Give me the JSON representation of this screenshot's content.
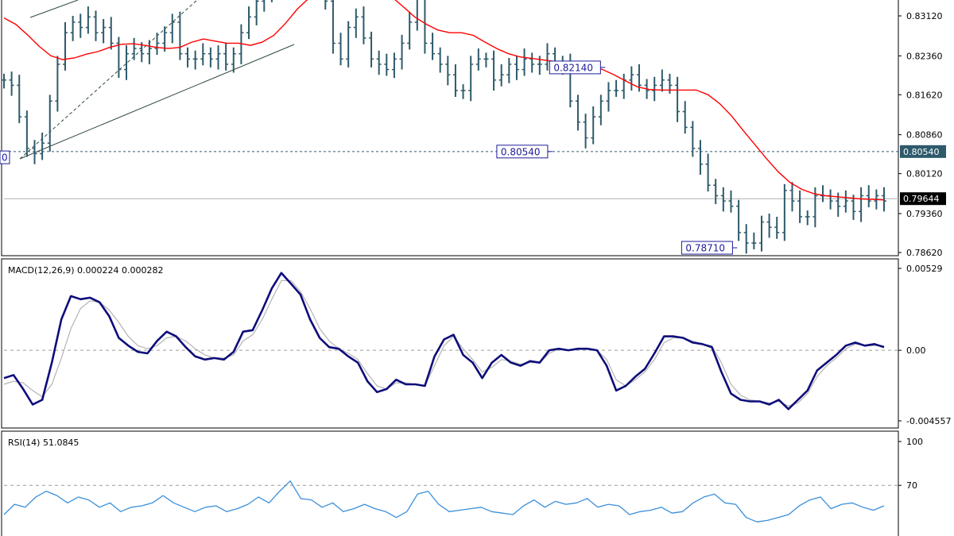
{
  "chart_data": [
    {
      "panel": "price",
      "type": "ohlc",
      "ylim": [
        0.7862,
        0.8386
      ],
      "y_ticks": [
        "0.83120",
        "0.82360",
        "0.81620",
        "0.80860",
        "0.80120",
        "0.79360",
        "0.78620"
      ],
      "current_price": "0.79644",
      "current_value": 0.79644,
      "support_level": "0.80540",
      "support_value": 0.8054,
      "annotations": [
        {
          "text": "0.82140",
          "x": 0.62,
          "y": 0.8214
        },
        {
          "text": "0.80540",
          "x": 0.56,
          "y": 0.8054
        },
        {
          "text": "0.78710",
          "x": 0.77,
          "y": 0.7871
        },
        {
          "text": "0",
          "x": 0.0,
          "y": 0.8043
        }
      ],
      "close_series": [
        0.819,
        0.818,
        0.812,
        0.806,
        0.805,
        0.807,
        0.815,
        0.822,
        0.828,
        0.83,
        0.829,
        0.831,
        0.828,
        0.829,
        0.826,
        0.821,
        0.824,
        0.825,
        0.824,
        0.825,
        0.826,
        0.828,
        0.83,
        0.824,
        0.823,
        0.823,
        0.824,
        0.823,
        0.824,
        0.822,
        0.824,
        0.828,
        0.831,
        0.834,
        0.835,
        0.837,
        0.839,
        0.839,
        0.84,
        0.838,
        0.837,
        0.836,
        0.834,
        0.826,
        0.823,
        0.829,
        0.831,
        0.827,
        0.823,
        0.822,
        0.821,
        0.823,
        0.826,
        0.83,
        0.835,
        0.826,
        0.824,
        0.822,
        0.82,
        0.817,
        0.817,
        0.822,
        0.823,
        0.823,
        0.819,
        0.82,
        0.822,
        0.821,
        0.823,
        0.822,
        0.822,
        0.824,
        0.822,
        0.822,
        0.815,
        0.811,
        0.808,
        0.812,
        0.815,
        0.817,
        0.817,
        0.819,
        0.82,
        0.818,
        0.817,
        0.818,
        0.819,
        0.818,
        0.813,
        0.81,
        0.806,
        0.803,
        0.799,
        0.797,
        0.796,
        0.795,
        0.79,
        0.788,
        0.788,
        0.792,
        0.791,
        0.79,
        0.798,
        0.796,
        0.793,
        0.793,
        0.797,
        0.797,
        0.796,
        0.795,
        0.796,
        0.794,
        0.797,
        0.796,
        0.797,
        0.796
      ],
      "ma_series": [
        0.8308,
        0.8296,
        0.8276,
        0.8254,
        0.8236,
        0.8229,
        0.8232,
        0.8239,
        0.8244,
        0.8252,
        0.8258,
        0.8259,
        0.8256,
        0.8252,
        0.825,
        0.8252,
        0.8262,
        0.8268,
        0.8264,
        0.826,
        0.826,
        0.8256,
        0.8262,
        0.8275,
        0.8298,
        0.8325,
        0.8346,
        0.836,
        0.8366,
        0.8368,
        0.8368,
        0.8366,
        0.836,
        0.8349,
        0.833,
        0.831,
        0.8296,
        0.8285,
        0.828,
        0.828,
        0.8275,
        0.8262,
        0.825,
        0.824,
        0.8234,
        0.8231,
        0.8228,
        0.8225,
        0.8223,
        0.822,
        0.8217,
        0.821,
        0.82,
        0.8188,
        0.8177,
        0.8172,
        0.8171,
        0.8171,
        0.8171,
        0.8171,
        0.8162,
        0.8145,
        0.8122,
        0.8094,
        0.8067,
        0.804,
        0.8015,
        0.7995,
        0.7982,
        0.7974,
        0.797,
        0.7968,
        0.7966,
        0.7964,
        0.7963,
        0.7962
      ]
    },
    {
      "panel": "macd",
      "type": "line",
      "label": "MACD(12,26,9) 0.000224 0.000282",
      "ylim": [
        -0.004557,
        0.00529
      ],
      "y_ticks": [
        "0.00529",
        "0.00",
        "-0.004557"
      ],
      "series": [
        {
          "values": [
            -0.0018,
            -0.0016,
            -0.0025,
            -0.0035,
            -0.0032,
            -0.0008,
            0.002,
            0.0035,
            0.0033,
            0.0034,
            0.0031,
            0.0022,
            0.0008,
            0.0003,
            -0.0001,
            -0.0002,
            0.0006,
            0.0012,
            0.0009,
            0.0002,
            -0.0004,
            -0.0006,
            -0.0005,
            -0.0006,
            -0.0001,
            0.0012,
            0.0013,
            0.0026,
            0.004,
            0.005,
            0.0043,
            0.0036,
            0.002,
            0.0008,
            0.0002,
            0.0001,
            -0.0004,
            -0.0008,
            -0.002,
            -0.0027,
            -0.0025,
            -0.0019,
            -0.0022,
            -0.0022,
            -0.0023,
            -0.0004,
            0.0007,
            0.001,
            -0.0003,
            -0.0008,
            -0.0018,
            -0.0008,
            -0.0003,
            -0.0008,
            -0.001,
            -0.0007,
            -0.0008,
            0.0,
            0.0001,
            0.0,
            0.0001,
            0.0001,
            0.0,
            -0.001,
            -0.0026,
            -0.0023,
            -0.0017,
            -0.0012,
            -0.0002,
            0.0009,
            0.0009,
            0.0008,
            0.0005,
            0.0004,
            0.0002,
            -0.0014,
            -0.0028,
            -0.0032,
            -0.0033,
            -0.0033,
            -0.0035,
            -0.0032,
            -0.0038,
            -0.0032,
            -0.0026,
            -0.0013,
            -0.0008,
            -0.0003,
            0.0003,
            0.0005,
            0.0003,
            0.0004,
            0.0002
          ]
        },
        {
          "values": [
            -0.0022,
            -0.002,
            -0.0021,
            -0.0026,
            -0.003,
            -0.0022,
            -0.0005,
            0.0014,
            0.0027,
            0.0032,
            0.0031,
            0.0026,
            0.0018,
            0.0009,
            0.0003,
            0.0001,
            0.0003,
            0.0008,
            0.0009,
            0.0006,
            0.0001,
            -0.0003,
            -0.0005,
            -0.0005,
            -0.0003,
            0.0006,
            0.001,
            0.002,
            0.0033,
            0.0045,
            0.0045,
            0.0038,
            0.0027,
            0.0014,
            0.0006,
            0.0001,
            -0.0002,
            -0.0006,
            -0.0015,
            -0.0023,
            -0.0025,
            -0.0021,
            -0.0021,
            -0.0022,
            -0.0023,
            -0.001,
            0.0003,
            0.0009,
            0.0001,
            -0.0006,
            -0.0014,
            -0.0011,
            -0.0006,
            -0.0007,
            -0.0009,
            -0.0008,
            -0.0008,
            -0.0002,
            0.0001,
            0.0,
            0.0001,
            0.0001,
            0.0,
            -0.0006,
            -0.0019,
            -0.0023,
            -0.0019,
            -0.0014,
            -0.0006,
            0.0005,
            0.0008,
            0.0008,
            0.0006,
            0.0004,
            0.0003,
            -0.0008,
            -0.0022,
            -0.0029,
            -0.0032,
            -0.0033,
            -0.0034,
            -0.0033,
            -0.0036,
            -0.0034,
            -0.0028,
            -0.0017,
            -0.001,
            -0.0005,
            0.0001,
            0.0004,
            0.0003,
            0.0003,
            0.0003
          ]
        }
      ]
    },
    {
      "panel": "rsi",
      "type": "line",
      "label": "RSI(14) 51.0845",
      "ylim": [
        0,
        100
      ],
      "y_ticks": [
        "100",
        "70"
      ],
      "levels": [
        70
      ],
      "values": [
        50,
        57,
        55,
        62,
        66,
        63,
        58,
        62,
        60,
        55,
        58,
        52,
        55,
        56,
        58,
        63,
        58,
        55,
        52,
        55,
        56,
        52,
        54,
        57,
        62,
        58,
        66,
        73,
        61,
        60,
        55,
        58,
        52,
        54,
        57,
        54,
        52,
        48,
        52,
        64,
        66,
        57,
        52,
        53,
        54,
        55,
        52,
        51,
        50,
        56,
        60,
        55,
        59,
        57,
        58,
        61,
        55,
        57,
        56,
        50,
        52,
        53,
        55,
        51,
        52,
        58,
        62,
        64,
        58,
        57,
        48,
        45,
        46,
        48,
        50,
        56,
        60,
        62,
        54,
        57,
        58,
        55,
        53,
        56
      ]
    }
  ],
  "colors": {
    "candle": "#2e5a6b",
    "ma": "#ff0000",
    "macd": "#0d0d7a",
    "signal": "#b4b4b4",
    "rsi": "#3b8fd9",
    "axis": "#000000",
    "tag_border": "#1c1c9a",
    "support_line": "#2e5a6b",
    "grid_dotted": "#9c9c9c"
  }
}
